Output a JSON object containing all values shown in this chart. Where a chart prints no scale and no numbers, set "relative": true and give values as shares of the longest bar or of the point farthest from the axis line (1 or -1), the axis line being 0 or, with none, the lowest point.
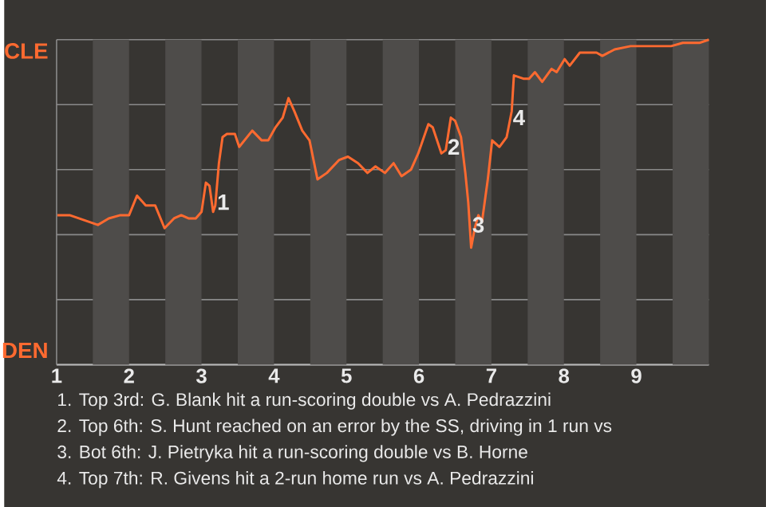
{
  "chart_data": {
    "type": "line",
    "relative": true,
    "xlim": [
      1,
      10
    ],
    "xticks": [
      1,
      2,
      3,
      4,
      5,
      6,
      7,
      8,
      9
    ],
    "grid": "y",
    "line_style": "solid",
    "x": [
      1.01,
      1.18,
      1.57,
      1.72,
      1.88,
      2.0,
      2.11,
      2.23,
      2.36,
      2.49,
      2.62,
      2.72,
      2.82,
      2.92,
      3.0,
      3.06,
      3.11,
      3.16,
      3.19,
      3.24,
      3.29,
      3.35,
      3.46,
      3.52,
      3.7,
      3.83,
      3.92,
      4.02,
      4.12,
      4.2,
      4.28,
      4.39,
      4.49,
      4.6,
      4.73,
      4.9,
      5.02,
      5.16,
      5.29,
      5.4,
      5.53,
      5.65,
      5.76,
      5.89,
      5.99,
      6.13,
      6.19,
      6.31,
      6.37,
      6.44,
      6.5,
      6.58,
      6.64,
      6.68,
      6.72,
      6.77,
      6.82,
      6.87,
      6.95,
      7.01,
      7.11,
      7.21,
      7.28,
      7.31,
      7.44,
      7.52,
      7.6,
      7.7,
      7.83,
      7.9,
      8.01,
      8.08,
      8.22,
      8.32,
      8.45,
      8.53,
      8.7,
      8.92,
      9.14,
      9.48,
      9.64,
      9.87,
      10
    ],
    "series": [
      {
        "color": "#ff6a30",
        "values": [
          0.46,
          0.46,
          0.43,
          0.45,
          0.46,
          0.46,
          0.52,
          0.49,
          0.49,
          0.42,
          0.45,
          0.46,
          0.45,
          0.45,
          0.47,
          0.56,
          0.55,
          0.47,
          0.49,
          0.62,
          0.7,
          0.71,
          0.71,
          0.67,
          0.72,
          0.69,
          0.69,
          0.73,
          0.76,
          0.82,
          0.78,
          0.72,
          0.69,
          0.57,
          0.59,
          0.63,
          0.64,
          0.62,
          0.59,
          0.61,
          0.59,
          0.62,
          0.58,
          0.6,
          0.65,
          0.74,
          0.73,
          0.65,
          0.66,
          0.76,
          0.75,
          0.7,
          0.59,
          0.5,
          0.36,
          0.42,
          0.46,
          0.44,
          0.57,
          0.69,
          0.67,
          0.7,
          0.78,
          0.89,
          0.88,
          0.88,
          0.9,
          0.87,
          0.91,
          0.9,
          0.94,
          0.92,
          0.96,
          0.96,
          0.96,
          0.95,
          0.97,
          0.98,
          0.98,
          0.98,
          0.99,
          0.99,
          1
        ]
      }
    ],
    "bands": [
      {
        "axis": "x",
        "from": 1.5,
        "to": 2,
        "color": "#4e4c4a"
      },
      {
        "axis": "x",
        "from": 2.5,
        "to": 3,
        "color": "#4e4c4a"
      },
      {
        "axis": "x",
        "from": 3.5,
        "to": 4,
        "color": "#4e4c4a"
      },
      {
        "axis": "x",
        "from": 4.5,
        "to": 5,
        "color": "#4e4c4a"
      },
      {
        "axis": "x",
        "from": 5.5,
        "to": 6,
        "color": "#4e4c4a"
      },
      {
        "axis": "x",
        "from": 6.5,
        "to": 7,
        "color": "#4e4c4a"
      },
      {
        "axis": "x",
        "from": 7.5,
        "to": 8,
        "color": "#4e4c4a"
      },
      {
        "axis": "x",
        "from": 8.5,
        "to": 9,
        "color": "#4e4c4a"
      },
      {
        "axis": "x",
        "from": 9.5,
        "to": 10,
        "color": "#4e4c4a"
      }
    ],
    "annotations": [
      "CLE",
      "DEN",
      {
        "text": "1",
        "x": 3.3,
        "y": 0.5
      },
      {
        "text": "2",
        "x": 6.48,
        "y": 0.67
      },
      {
        "text": "3",
        "x": 6.82,
        "y": 0.43
      },
      {
        "text": "4",
        "x": 7.38,
        "y": 0.76
      },
      "1. Top 3rd: G. Blank hit a run-scoring double vs A. Pedrazzini",
      "2. Top 6th: S. Hunt reached on an error by the SS, driving in 1 run vs",
      "3. Bot 6th: J. Pietryka hit a run-scoring double vs B. Horne",
      "4. Top 7th: R. Givens hit a 2-run home run vs A. Pedrazzini"
    ]
  }
}
